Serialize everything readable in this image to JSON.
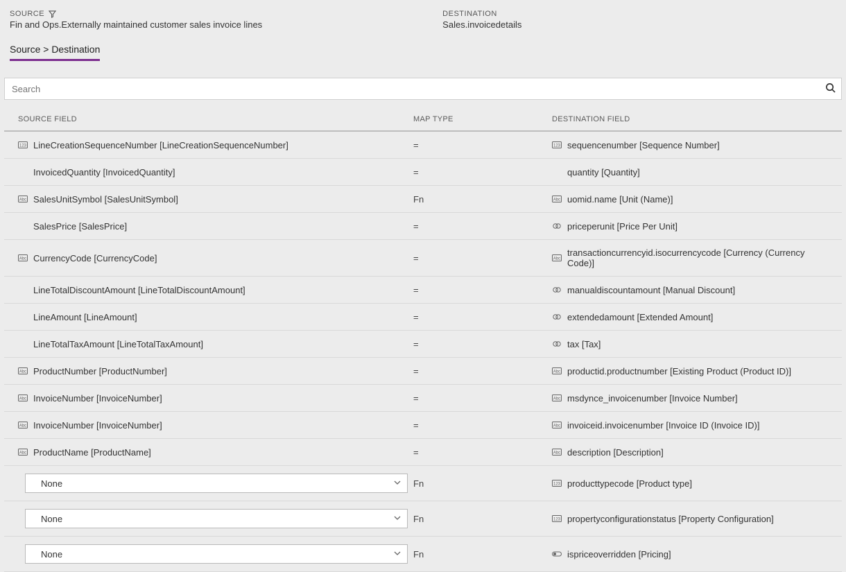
{
  "header": {
    "source_label": "SOURCE",
    "source_value": "Fin and Ops.Externally maintained customer sales invoice lines",
    "destination_label": "DESTINATION",
    "destination_value": "Sales.invoicedetails"
  },
  "tab": {
    "label": "Source > Destination"
  },
  "search": {
    "placeholder": "Search"
  },
  "columns": {
    "source": "SOURCE FIELD",
    "map": "MAP TYPE",
    "destination": "DESTINATION FIELD"
  },
  "select_none": "None",
  "rows": [
    {
      "src_icon": "num",
      "src": "LineCreationSequenceNumber [LineCreationSequenceNumber]",
      "map": "=",
      "dst_icon": "num",
      "dst": "sequencenumber [Sequence Number]"
    },
    {
      "src_icon": "",
      "src": "InvoicedQuantity [InvoicedQuantity]",
      "map": "=",
      "dst_icon": "",
      "dst": "quantity [Quantity]"
    },
    {
      "src_icon": "text",
      "src": "SalesUnitSymbol [SalesUnitSymbol]",
      "map": "Fn",
      "dst_icon": "text",
      "dst": "uomid.name [Unit (Name)]"
    },
    {
      "src_icon": "",
      "src": "SalesPrice [SalesPrice]",
      "map": "=",
      "dst_icon": "money",
      "dst": "priceperunit [Price Per Unit]"
    },
    {
      "src_icon": "text",
      "src": "CurrencyCode [CurrencyCode]",
      "map": "=",
      "dst_icon": "text",
      "dst": "transactioncurrencyid.isocurrencycode [Currency (Currency Code)]"
    },
    {
      "src_icon": "",
      "src": "LineTotalDiscountAmount [LineTotalDiscountAmount]",
      "map": "=",
      "dst_icon": "money",
      "dst": "manualdiscountamount [Manual Discount]"
    },
    {
      "src_icon": "",
      "src": "LineAmount [LineAmount]",
      "map": "=",
      "dst_icon": "money",
      "dst": "extendedamount [Extended Amount]"
    },
    {
      "src_icon": "",
      "src": "LineTotalTaxAmount [LineTotalTaxAmount]",
      "map": "=",
      "dst_icon": "money",
      "dst": "tax [Tax]"
    },
    {
      "src_icon": "text",
      "src": "ProductNumber [ProductNumber]",
      "map": "=",
      "dst_icon": "text",
      "dst": "productid.productnumber [Existing Product (Product ID)]"
    },
    {
      "src_icon": "text",
      "src": "InvoiceNumber [InvoiceNumber]",
      "map": "=",
      "dst_icon": "text",
      "dst": "msdynce_invoicenumber [Invoice Number]"
    },
    {
      "src_icon": "text",
      "src": "InvoiceNumber [InvoiceNumber]",
      "map": "=",
      "dst_icon": "text",
      "dst": "invoiceid.invoicenumber [Invoice ID (Invoice ID)]"
    },
    {
      "src_icon": "text",
      "src": "ProductName [ProductName]",
      "map": "=",
      "dst_icon": "text",
      "dst": "description [Description]"
    },
    {
      "src_icon": "select",
      "src": "None",
      "map": "Fn",
      "dst_icon": "num",
      "dst": "producttypecode [Product type]"
    },
    {
      "src_icon": "select",
      "src": "None",
      "map": "Fn",
      "dst_icon": "num",
      "dst": "propertyconfigurationstatus [Property Configuration]"
    },
    {
      "src_icon": "select",
      "src": "None",
      "map": "Fn",
      "dst_icon": "toggle",
      "dst": "ispriceoverridden [Pricing]"
    }
  ],
  "icons": {
    "num": "<svg width='14' height='10' viewBox='0 0 14 10'><rect x='0.5' y='0.5' width='13' height='9' rx='1' fill='none' stroke='#666'/><text x='7' y='7.5' font-size='6' text-anchor='middle' fill='#666' font-family='sans-serif'>123</text></svg>",
    "text": "<svg width='14' height='10' viewBox='0 0 14 10'><rect x='0.5' y='0.5' width='13' height='9' rx='1' fill='none' stroke='#666'/><text x='7' y='7.5' font-size='6' text-anchor='middle' fill='#666' font-family='sans-serif'>Abc</text></svg>",
    "money": "<svg width='12' height='12' viewBox='0 0 12 12'><circle cx='4' cy='6' r='3.2' fill='none' stroke='#666'/><circle cx='8' cy='6' r='3.2' fill='none' stroke='#666'/></svg>",
    "toggle": "<svg width='14' height='10' viewBox='0 0 14 10'><rect x='0.5' y='2' width='13' height='6' rx='3' fill='none' stroke='#666'/><circle cx='4' cy='5' r='2' fill='#666'/></svg>"
  }
}
